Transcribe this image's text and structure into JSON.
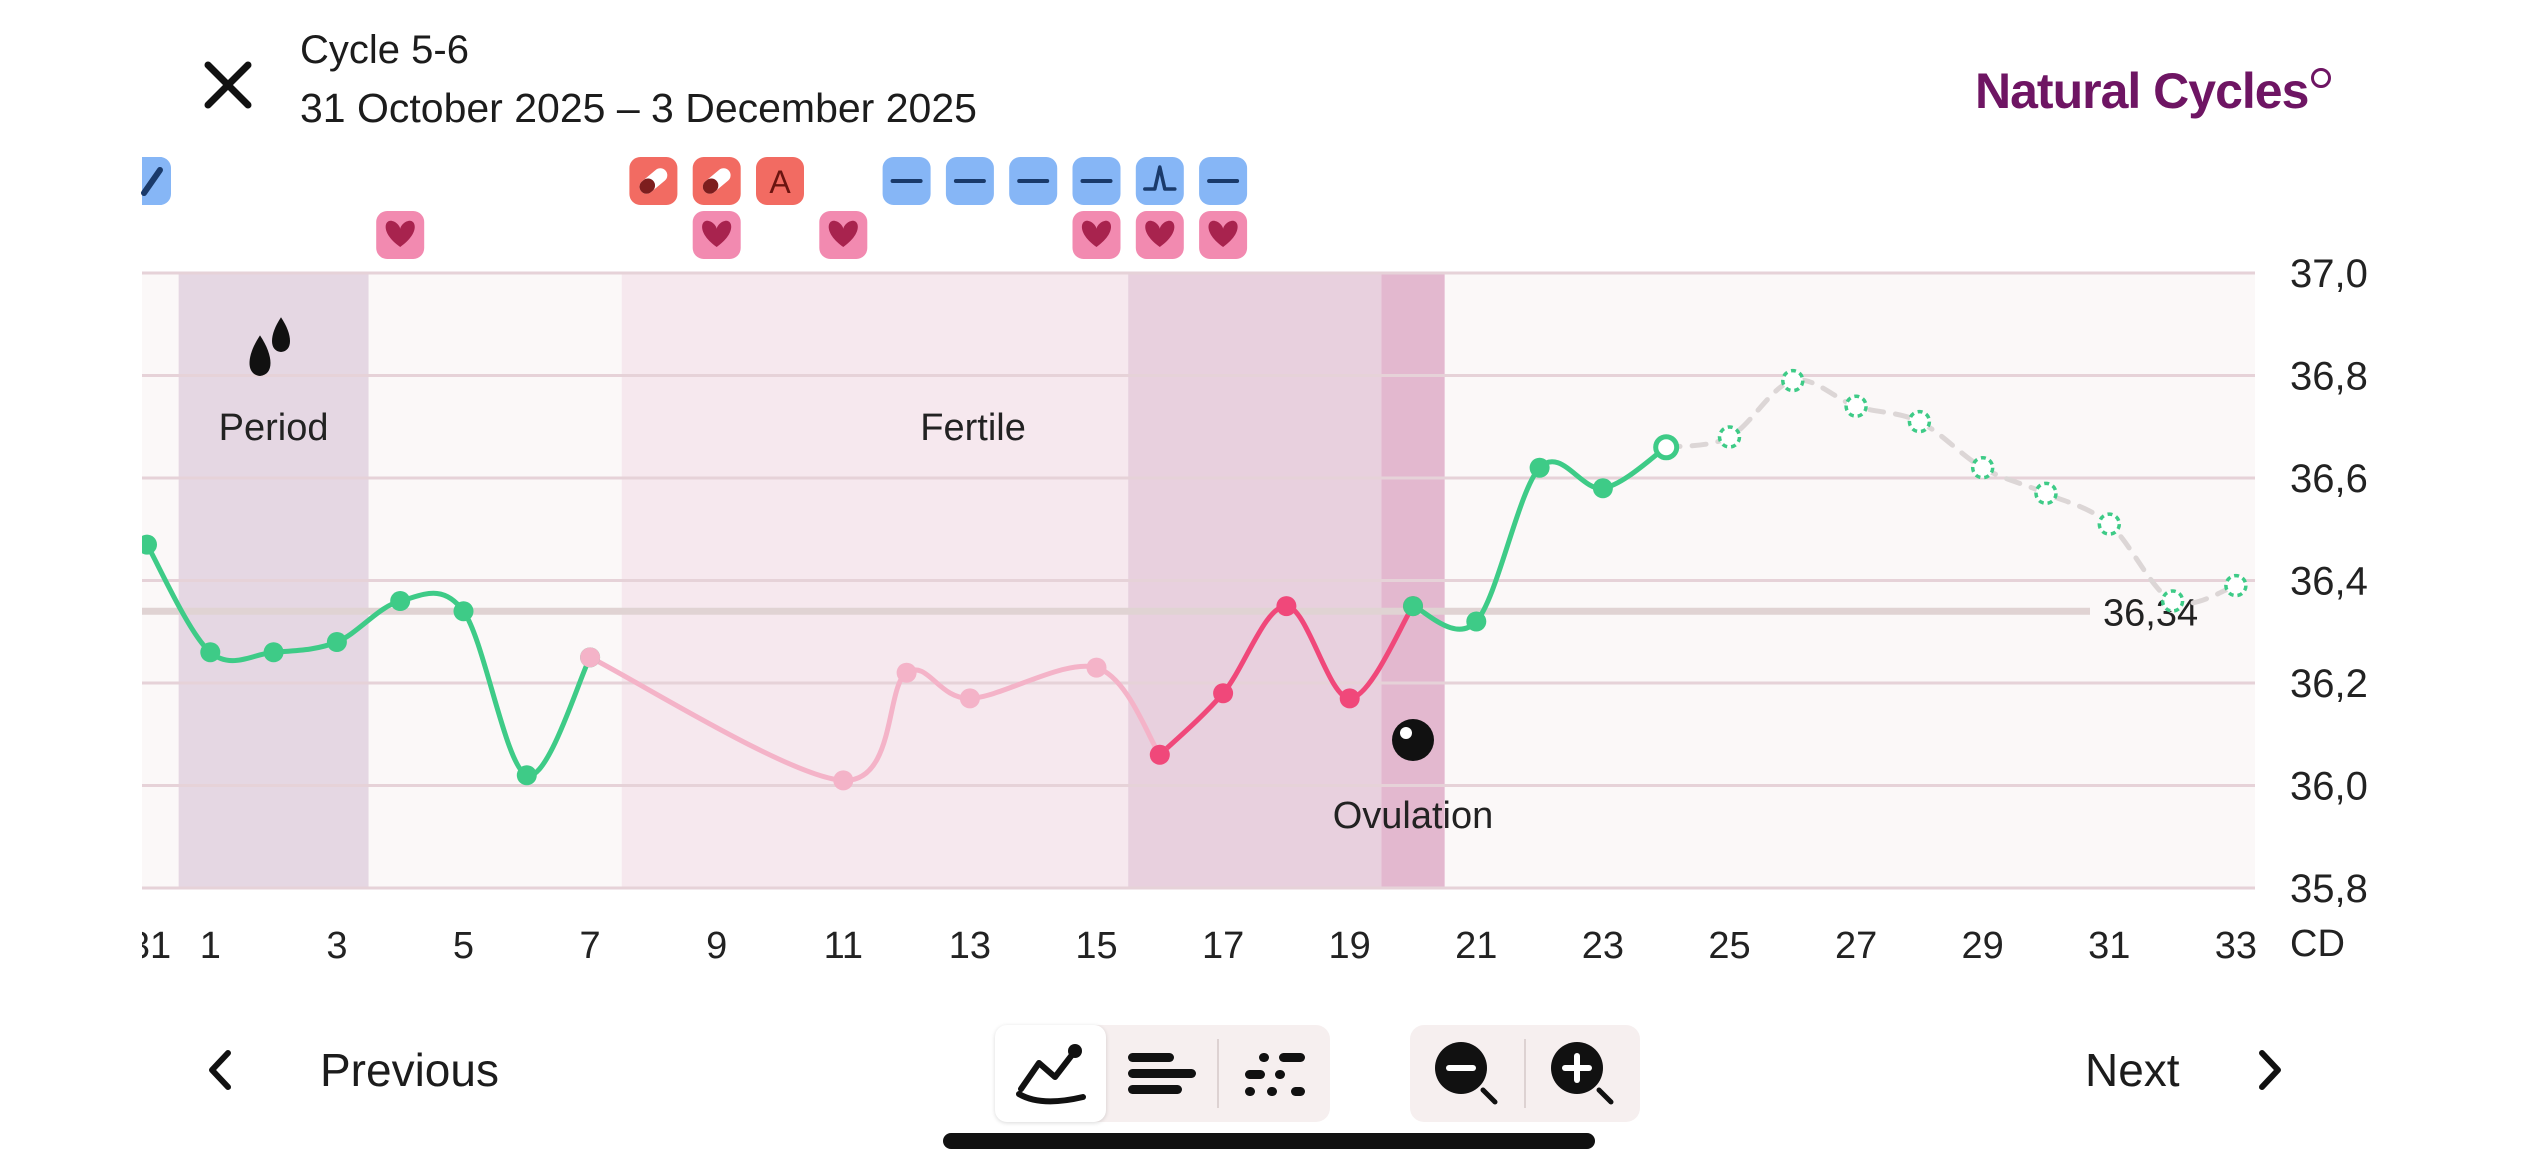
{
  "header": {
    "close_icon": "close-icon",
    "title": "Cycle 5-6",
    "dates": "31 October 2025 – 3 December 2025",
    "brand": "Natural Cycles"
  },
  "colors": {
    "green": "#3ecb87",
    "pink_dark": "#f0487a",
    "pink_light": "#f4b3c8",
    "period_band": "#e5d7e3",
    "fertile_band": "#f6e8ee",
    "fertile_peak_band": "#e8d0de",
    "ovulation_band": "#e3b8cf",
    "brand": "#6e1563"
  },
  "chart_data": {
    "type": "line",
    "x_ticks": [
      "31",
      "1",
      "3",
      "5",
      "7",
      "9",
      "11",
      "13",
      "15",
      "17",
      "19",
      "21",
      "23",
      "25",
      "27",
      "29",
      "31",
      "33"
    ],
    "x_unit": "CD",
    "y_ticks": [
      "37,0",
      "36,8",
      "36,6",
      "36,4",
      "36,2",
      "36,0",
      "35,8"
    ],
    "ylim": [
      35.8,
      37.0
    ],
    "coverline_label": "36,34",
    "coverline": 36.34,
    "phase_labels": {
      "period": "Period",
      "fertile": "Fertile",
      "ovulation": "Ovulation"
    },
    "bands": [
      {
        "name": "period",
        "from": 0.5,
        "to": 3.5
      },
      {
        "name": "fertile",
        "from": 7.5,
        "to": 15.5
      },
      {
        "name": "fertile-peak",
        "from": 15.5,
        "to": 19.5
      },
      {
        "name": "ovulation",
        "from": 19.5,
        "to": 20.5
      }
    ],
    "series": [
      {
        "points": [
          [
            0,
            36.47
          ],
          [
            1,
            36.26
          ],
          [
            2,
            36.26
          ],
          [
            3,
            36.28
          ],
          [
            4,
            36.36
          ],
          [
            5,
            36.34
          ],
          [
            6,
            36.02
          ],
          [
            7,
            36.25
          ]
        ],
        "style": "green"
      },
      {
        "points": [
          [
            7,
            36.25
          ],
          [
            11,
            36.01
          ],
          [
            12,
            36.22
          ],
          [
            13,
            36.17
          ],
          [
            15,
            36.23
          ],
          [
            16,
            36.06
          ]
        ],
        "style": "pink-light"
      },
      {
        "points": [
          [
            16,
            36.06
          ],
          [
            17,
            36.18
          ],
          [
            18,
            36.35
          ],
          [
            19,
            36.17
          ],
          [
            20,
            36.35
          ]
        ],
        "style": "pink-dark"
      },
      {
        "points": [
          [
            20,
            36.35
          ],
          [
            21,
            36.32
          ],
          [
            22,
            36.62
          ],
          [
            23,
            36.58
          ],
          [
            24,
            36.66
          ]
        ],
        "style": "green"
      },
      {
        "points": [
          [
            24,
            36.66
          ],
          [
            25,
            36.68
          ],
          [
            26,
            36.79
          ],
          [
            27,
            36.74
          ],
          [
            28,
            36.71
          ],
          [
            29,
            36.62
          ],
          [
            30,
            36.57
          ],
          [
            31,
            36.51
          ],
          [
            32,
            36.36
          ],
          [
            33,
            36.39
          ]
        ],
        "style": "prediction"
      }
    ],
    "period_icon": "blood-drops-icon",
    "ovulation_icon": "egg-icon",
    "log_icons": {
      "row1": [
        {
          "day": 0,
          "icon": "test-pen-icon",
          "kind": "blue"
        },
        {
          "day": 8,
          "icon": "pill-icon",
          "kind": "red"
        },
        {
          "day": 9,
          "icon": "pill-icon",
          "kind": "red"
        },
        {
          "day": 10,
          "icon": "test-a-icon",
          "kind": "red"
        },
        {
          "day": 12,
          "icon": "lh-negative-icon",
          "kind": "blue"
        },
        {
          "day": 13,
          "icon": "lh-negative-icon",
          "kind": "blue"
        },
        {
          "day": 14,
          "icon": "lh-negative-icon",
          "kind": "blue"
        },
        {
          "day": 15,
          "icon": "lh-negative-icon",
          "kind": "blue"
        },
        {
          "day": 16,
          "icon": "lh-peak-icon",
          "kind": "blue"
        },
        {
          "day": 17,
          "icon": "lh-negative-icon",
          "kind": "blue"
        }
      ],
      "row2": [
        {
          "day": 4,
          "icon": "heart-icon"
        },
        {
          "day": 9,
          "icon": "heart-icon"
        },
        {
          "day": 11,
          "icon": "heart-icon"
        },
        {
          "day": 15,
          "icon": "heart-icon"
        },
        {
          "day": 16,
          "icon": "heart-icon"
        },
        {
          "day": 17,
          "icon": "heart-icon"
        }
      ]
    }
  },
  "bottom": {
    "previous_label": "Previous",
    "next_label": "Next",
    "view_icons": [
      "line-graph-icon",
      "bars-icon",
      "dots-icon"
    ],
    "zoom_icons": [
      "zoom-out-icon",
      "zoom-in-icon"
    ]
  }
}
